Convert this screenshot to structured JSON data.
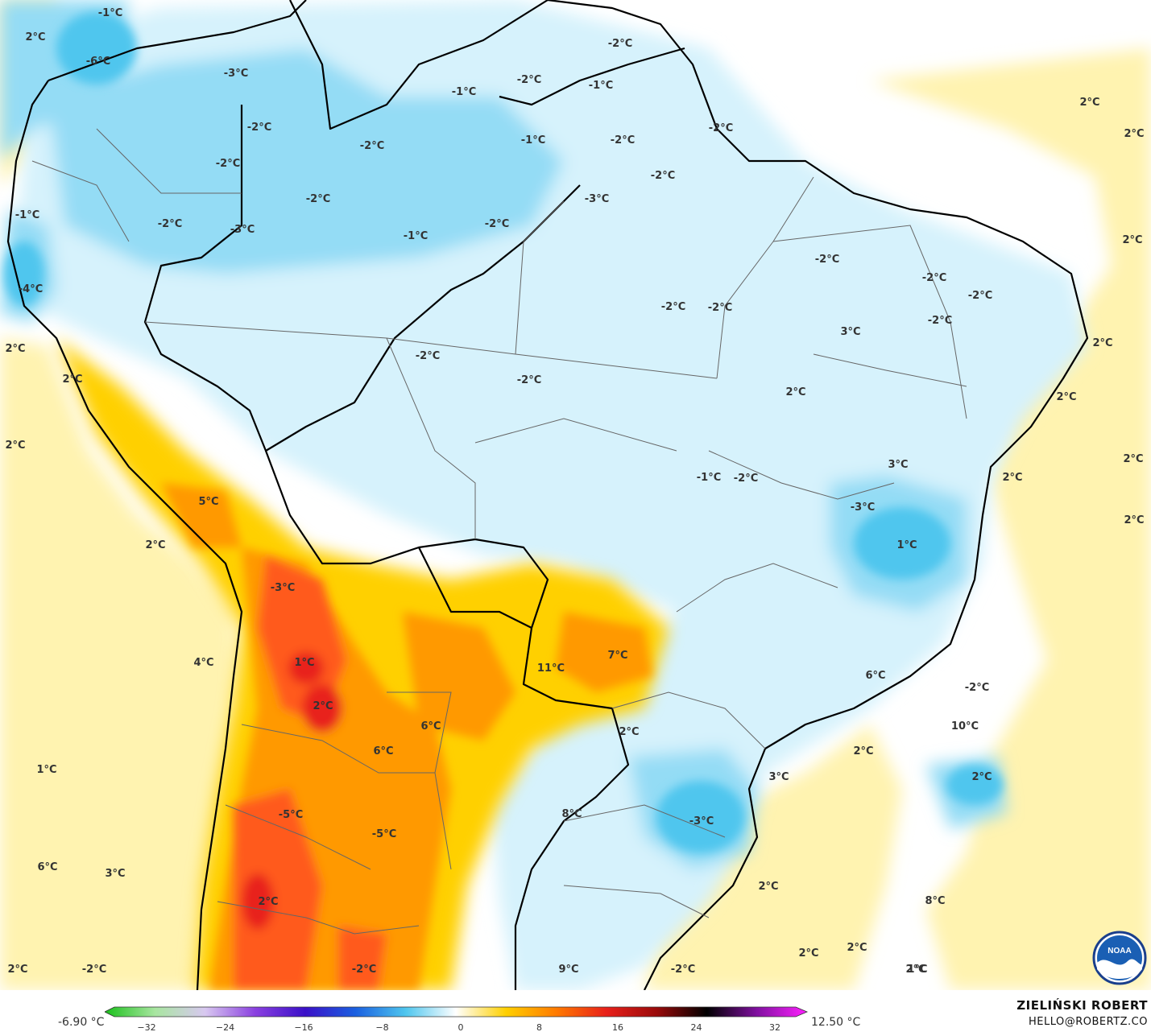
{
  "map": {
    "colors": {
      "cold_strong": "#4fc6ee",
      "cold_medium": "#94dcf5",
      "cold_light": "#d6f2fc",
      "neutral": "#ffffff",
      "warm_light": "#fff3b0",
      "warm_medium": "#ffd000",
      "warm_strong": "#ff9900",
      "hot": "#ff5a1a",
      "very_hot": "#e8201a",
      "border": "#000000",
      "state_border": "#555555"
    },
    "labels": [
      {
        "text": "-1°C"
      },
      {
        "text": "-6°C"
      },
      {
        "text": "2°C"
      },
      {
        "text": "-3°C"
      },
      {
        "text": "-2°C"
      },
      {
        "text": "-2°C"
      },
      {
        "text": "-1°C"
      },
      {
        "text": "-2°C"
      },
      {
        "text": "-2°C"
      },
      {
        "text": "-1°C"
      },
      {
        "text": "-2°C"
      },
      {
        "text": "-2°C"
      },
      {
        "text": "-2°C"
      },
      {
        "text": "-2°C"
      },
      {
        "text": "-2°C"
      },
      {
        "text": "-2°C"
      },
      {
        "text": "-3°C"
      },
      {
        "text": "-2°C"
      },
      {
        "text": "-3°C"
      },
      {
        "text": "-1°C"
      },
      {
        "text": "-1°C"
      },
      {
        "text": "-2°C"
      },
      {
        "text": "2°C"
      },
      {
        "text": "2°C"
      },
      {
        "text": "-4°C"
      },
      {
        "text": "-1°C"
      },
      {
        "text": "-2°C"
      },
      {
        "text": "-2°C"
      },
      {
        "text": "-2°C"
      },
      {
        "text": "-2°C"
      },
      {
        "text": "2°C"
      },
      {
        "text": "-2°C"
      },
      {
        "text": "2°C"
      },
      {
        "text": "2°C"
      },
      {
        "text": "3°C"
      },
      {
        "text": "2°C"
      },
      {
        "text": "-2°C"
      },
      {
        "text": "-2°C"
      },
      {
        "text": "2°C"
      },
      {
        "text": "2°C"
      },
      {
        "text": "2°C"
      },
      {
        "text": "2°C"
      },
      {
        "text": "5°C"
      },
      {
        "text": "3°C"
      },
      {
        "text": "-1°C"
      },
      {
        "text": "-2°C"
      },
      {
        "text": "2°C"
      },
      {
        "text": "2°C"
      },
      {
        "text": "-3°C"
      },
      {
        "text": "2°C"
      },
      {
        "text": "1°C"
      },
      {
        "text": "-3°C"
      },
      {
        "text": "7°C"
      },
      {
        "text": "4°C"
      },
      {
        "text": "1°C"
      },
      {
        "text": "11°C"
      },
      {
        "text": "6°C"
      },
      {
        "text": "-2°C"
      },
      {
        "text": "2°C"
      },
      {
        "text": "10°C"
      },
      {
        "text": "2°C"
      },
      {
        "text": "6°C"
      },
      {
        "text": "2°C"
      },
      {
        "text": "6°C"
      },
      {
        "text": "1°C"
      },
      {
        "text": "3°C"
      },
      {
        "text": "2°C"
      },
      {
        "text": "-5°C"
      },
      {
        "text": "8°C"
      },
      {
        "text": "-3°C"
      },
      {
        "text": "-5°C"
      },
      {
        "text": "6°C"
      },
      {
        "text": "3°C"
      },
      {
        "text": "2°C"
      },
      {
        "text": "2°C"
      },
      {
        "text": "8°C"
      },
      {
        "text": "2°C"
      },
      {
        "text": "2°C"
      },
      {
        "text": "2°C"
      },
      {
        "text": "2°C"
      },
      {
        "text": "-2°C"
      },
      {
        "text": "-2°C"
      },
      {
        "text": "9°C"
      },
      {
        "text": "-2°C"
      },
      {
        "text": "1°C"
      },
      {
        "text": "2°C"
      }
    ]
  },
  "colorbar": {
    "min_label": "-6.90 °C",
    "max_label": "12.50 °C",
    "ticks": [
      "−32",
      "−24",
      "−16",
      "−8",
      "0",
      "8",
      "16",
      "24",
      "32"
    ],
    "stops": [
      "#19c01a",
      "#a8e6a0",
      "#d8c8f0",
      "#8a40e0",
      "#3a10c8",
      "#1a60e0",
      "#4fc6ee",
      "#ffffff",
      "#ffd000",
      "#ff7a00",
      "#e8201a",
      "#9a0a0a",
      "#000000",
      "#8010a0",
      "#ff20ff"
    ]
  },
  "credit": {
    "name": "ZIELIŃSKI ROBERT",
    "email": "HELLO@ROBERTZ.CO"
  },
  "logo": {
    "text": "NOAA"
  }
}
